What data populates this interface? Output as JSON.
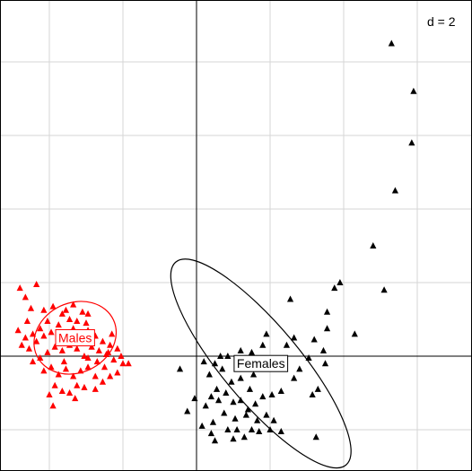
{
  "chart_data": {
    "type": "scatter",
    "scale_label": "d = 2",
    "grid_step": 2,
    "xlim": [
      -5.5,
      7.3
    ],
    "ylim": [
      -3.0,
      9.8
    ],
    "grid": true,
    "axes_cross_at_origin": true,
    "series": [
      {
        "name": "Males",
        "color": "#ff0000",
        "marker": "triangle",
        "ellipse": {
          "cx": -3.3,
          "cy": 0.5,
          "rx": 1.15,
          "ry": 0.95,
          "angle_deg": -25
        },
        "points": [
          [
            -4.8,
            1.85
          ],
          [
            -4.65,
            1.6
          ],
          [
            -4.35,
            1.95
          ],
          [
            -4.15,
            1.25
          ],
          [
            -3.9,
            1.35
          ],
          [
            -3.65,
            1.15
          ],
          [
            -3.55,
            1.25
          ],
          [
            -3.35,
            1.4
          ],
          [
            -3.1,
            1.2
          ],
          [
            -2.95,
            1.15
          ],
          [
            -3.25,
            0.95
          ],
          [
            -3.45,
            1.0
          ],
          [
            -3.75,
            0.85
          ],
          [
            -4.05,
            0.95
          ],
          [
            -4.25,
            0.75
          ],
          [
            -4.45,
            0.6
          ],
          [
            -4.65,
            0.5
          ],
          [
            -4.85,
            0.7
          ],
          [
            -4.75,
            0.3
          ],
          [
            -4.55,
            0.2
          ],
          [
            -4.35,
            0.4
          ],
          [
            -4.15,
            0.55
          ],
          [
            -3.95,
            0.65
          ],
          [
            -3.75,
            0.45
          ],
          [
            -3.55,
            0.6
          ],
          [
            -3.35,
            0.75
          ],
          [
            -3.15,
            0.55
          ],
          [
            -2.95,
            0.7
          ],
          [
            -2.75,
            0.55
          ],
          [
            -2.55,
            0.4
          ],
          [
            -2.35,
            0.3
          ],
          [
            -2.15,
            0.2
          ],
          [
            -2.05,
            0.0
          ],
          [
            -1.85,
            -0.2
          ],
          [
            -2.25,
            -0.1
          ],
          [
            -2.45,
            0.05
          ],
          [
            -2.65,
            0.15
          ],
          [
            -2.85,
            0.25
          ],
          [
            -3.05,
            0.35
          ],
          [
            -3.25,
            0.2
          ],
          [
            -3.45,
            0.3
          ],
          [
            -3.65,
            0.15
          ],
          [
            -3.85,
            0.25
          ],
          [
            -4.05,
            0.1
          ],
          [
            -4.25,
            -0.05
          ],
          [
            -4.45,
            -0.15
          ],
          [
            -4.15,
            -0.4
          ],
          [
            -3.95,
            -0.3
          ],
          [
            -3.75,
            -0.5
          ],
          [
            -3.55,
            -0.35
          ],
          [
            -3.35,
            -0.55
          ],
          [
            -3.15,
            -0.4
          ],
          [
            -2.95,
            -0.3
          ],
          [
            -2.75,
            -0.55
          ],
          [
            -2.55,
            -0.7
          ],
          [
            -2.75,
            -0.9
          ],
          [
            -3.05,
            -0.85
          ],
          [
            -3.25,
            -0.8
          ],
          [
            -3.45,
            -1.0
          ],
          [
            -3.65,
            -0.95
          ],
          [
            -3.85,
            -0.8
          ],
          [
            -2.35,
            -0.55
          ],
          [
            -2.15,
            -0.45
          ],
          [
            -2.95,
            -0.05
          ],
          [
            -3.5,
            0.55
          ],
          [
            -4.6,
            0.95
          ],
          [
            -4.0,
            -1.05
          ],
          [
            -3.3,
            -1.15
          ],
          [
            -2.5,
            -0.3
          ],
          [
            -2.0,
            -0.2
          ],
          [
            -3.9,
            -1.35
          ],
          [
            -2.7,
            -0.15
          ],
          [
            -3.05,
            0.0
          ],
          [
            -3.6,
            -0.15
          ],
          [
            -2.4,
            0.1
          ],
          [
            -2.3,
            0.6
          ],
          [
            -4.5,
            1.3
          ],
          [
            -3.0,
            0.9
          ]
        ]
      },
      {
        "name": "Females",
        "color": "#000000",
        "marker": "triangle",
        "ellipse": {
          "cx": 1.75,
          "cy": -0.2,
          "rx": 3.6,
          "ry": 1.05,
          "angle_deg": 50
        },
        "points": [
          [
            5.3,
            8.5
          ],
          [
            5.9,
            7.2
          ],
          [
            5.85,
            5.8
          ],
          [
            5.4,
            4.5
          ],
          [
            4.8,
            3.0
          ],
          [
            5.1,
            1.8
          ],
          [
            3.9,
            2.0
          ],
          [
            3.75,
            1.85
          ],
          [
            2.55,
            1.55
          ],
          [
            3.55,
            1.2
          ],
          [
            4.3,
            0.6
          ],
          [
            3.55,
            0.75
          ],
          [
            3.2,
            0.45
          ],
          [
            2.65,
            0.5
          ],
          [
            2.45,
            0.3
          ],
          [
            3.45,
            0.15
          ],
          [
            3.5,
            -0.2
          ],
          [
            2.8,
            -0.35
          ],
          [
            1.9,
            0.6
          ],
          [
            1.8,
            0.3
          ],
          [
            1.5,
            0.1
          ],
          [
            1.2,
            0.15
          ],
          [
            0.85,
            0.0
          ],
          [
            0.65,
            0.0
          ],
          [
            0.5,
            -0.2
          ],
          [
            0.2,
            -0.15
          ],
          [
            3.3,
            -0.9
          ],
          [
            3.15,
            -1.05
          ],
          [
            2.3,
            -0.95
          ],
          [
            2.05,
            -1.05
          ],
          [
            1.8,
            -1.1
          ],
          [
            1.6,
            -1.3
          ],
          [
            1.4,
            -1.45
          ],
          [
            1.2,
            -1.2
          ],
          [
            1.0,
            -1.25
          ],
          [
            0.8,
            -1.0
          ],
          [
            0.6,
            -1.2
          ],
          [
            0.4,
            -1.1
          ],
          [
            0.25,
            -1.35
          ],
          [
            0.75,
            -1.55
          ],
          [
            1.05,
            -1.7
          ],
          [
            1.35,
            -1.6
          ],
          [
            1.65,
            -1.75
          ],
          [
            1.9,
            -1.6
          ],
          [
            2.1,
            -1.75
          ],
          [
            0.45,
            -1.8
          ],
          [
            0.15,
            -1.9
          ],
          [
            -0.05,
            -1.15
          ],
          [
            1.5,
            -2.0
          ],
          [
            1.1,
            -2.0
          ],
          [
            0.85,
            -2.0
          ],
          [
            0.4,
            -2.1
          ],
          [
            2.0,
            -2.0
          ],
          [
            1.7,
            -2.05
          ],
          [
            2.3,
            -2.05
          ],
          [
            1.3,
            -2.2
          ],
          [
            -0.25,
            -1.5
          ],
          [
            0.35,
            -0.5
          ],
          [
            0.7,
            -0.35
          ],
          [
            1.45,
            -0.9
          ],
          [
            3.25,
            -2.2
          ],
          [
            0.5,
            -2.3
          ],
          [
            1.0,
            -2.25
          ],
          [
            -0.45,
            -0.35
          ],
          [
            3.05,
            -0.05
          ],
          [
            1.55,
            -0.5
          ],
          [
            1.2,
            -0.6
          ],
          [
            0.95,
            -0.7
          ],
          [
            0.55,
            -0.9
          ],
          [
            2.65,
            -0.6
          ]
        ]
      }
    ]
  }
}
